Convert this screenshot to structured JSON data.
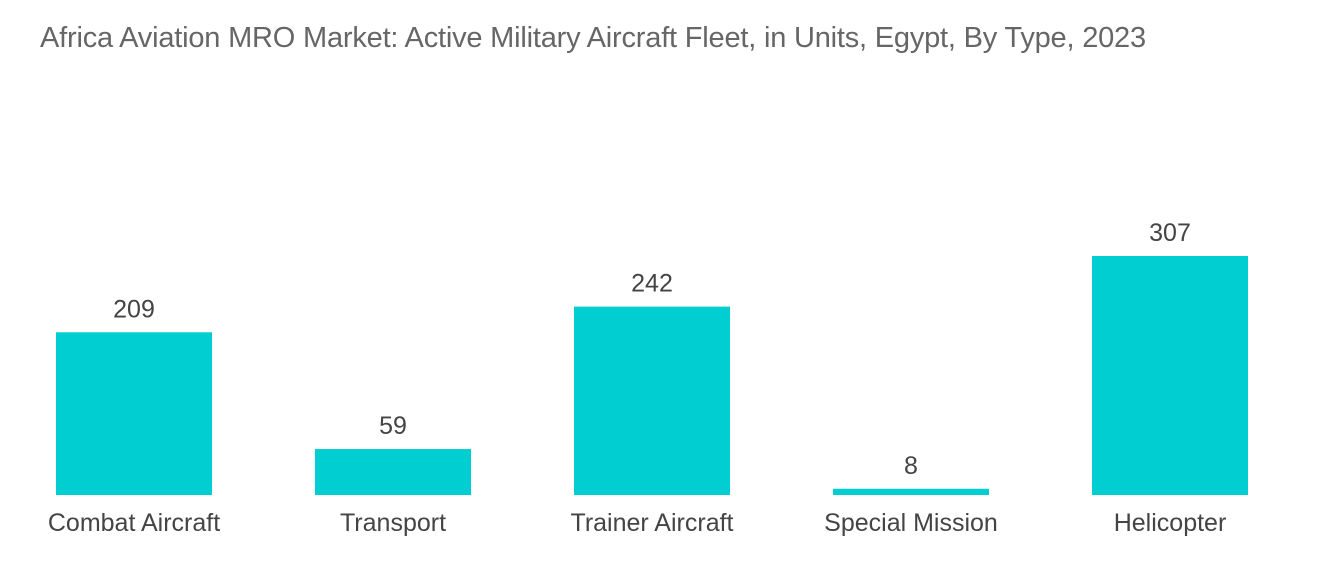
{
  "chart_data": {
    "type": "bar",
    "title": "Africa Aviation MRO Market: Active Military Aircraft Fleet, in Units, Egypt, By Type, 2023",
    "categories": [
      "Combat Aircraft",
      "Transport",
      "Trainer Aircraft",
      "Special Mission",
      "Helicopter"
    ],
    "values": [
      209,
      59,
      242,
      8,
      307
    ],
    "xlabel": "",
    "ylabel": "",
    "ylim": [
      0,
      307
    ],
    "grid": false,
    "legend": "none",
    "bar_color": "#00CED1"
  }
}
